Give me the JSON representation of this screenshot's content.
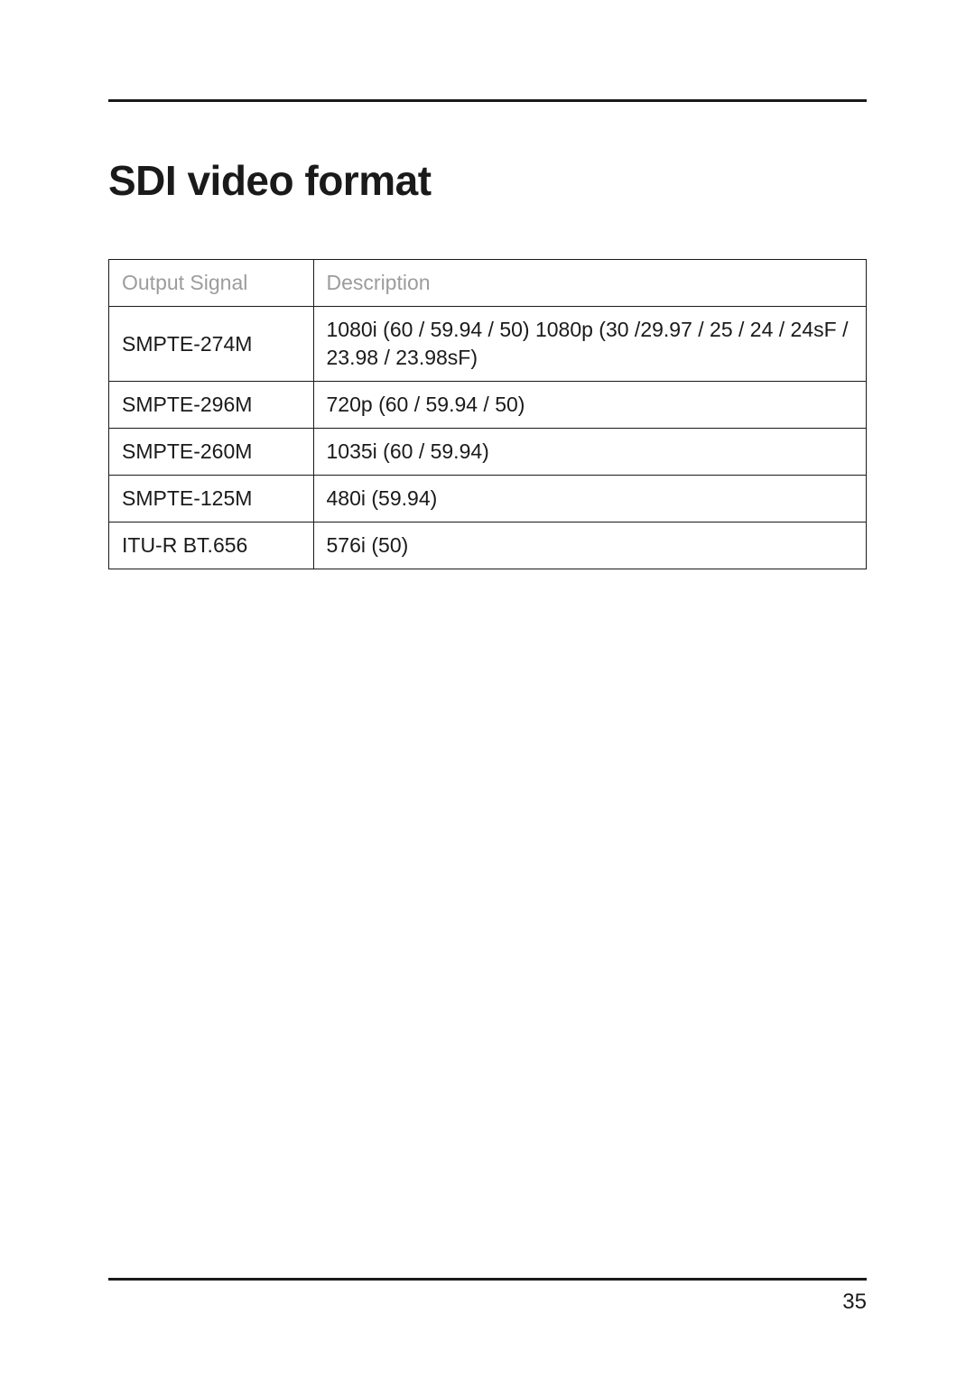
{
  "title": "SDI video format",
  "table": {
    "header": {
      "signal": "Output Signal",
      "desc": "Description"
    },
    "rows": [
      {
        "signal": "SMPTE-274M",
        "desc": "1080i (60 / 59.94 / 50) 1080p (30 /29.97 / 25 / 24 / 24sF / 23.98 / 23.98sF)"
      },
      {
        "signal": "SMPTE-296M",
        "desc": "720p (60 / 59.94 / 50)"
      },
      {
        "signal": "SMPTE-260M",
        "desc": "1035i (60 / 59.94)"
      },
      {
        "signal": "SMPTE-125M",
        "desc": "480i (59.94)"
      },
      {
        "signal": "ITU-R BT.656",
        "desc": "576i (50)"
      }
    ]
  },
  "page_number": "35",
  "style": {
    "rule_color": "#1a1a1a",
    "header_text_color": "#9c9c9c",
    "body_text_color": "#1a1a1a",
    "table_border_color": "#1a1a1a",
    "font_size_title": 46,
    "font_size_cell": 23,
    "font_size_page": 24
  }
}
